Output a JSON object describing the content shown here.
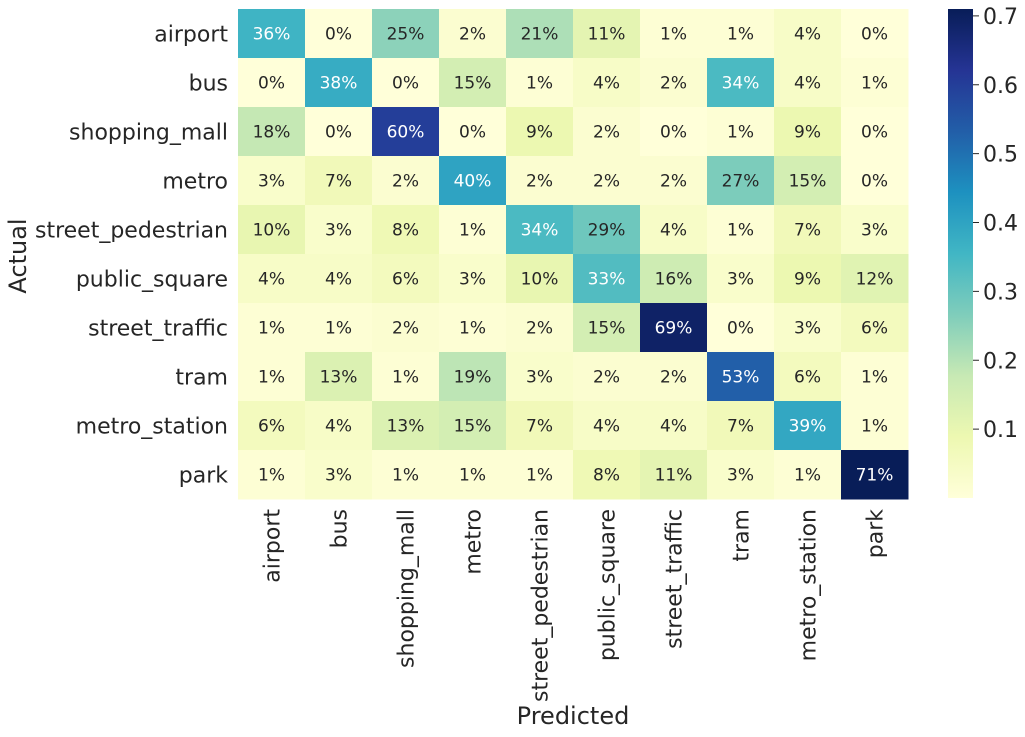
{
  "chart_data": {
    "type": "heatmap",
    "xlabel": "Predicted",
    "ylabel": "Actual",
    "row_labels": [
      "airport",
      "bus",
      "shopping_mall",
      "metro",
      "street_pedestrian",
      "public_square",
      "street_traffic",
      "tram",
      "metro_station",
      "park"
    ],
    "col_labels": [
      "airport",
      "bus",
      "shopping_mall",
      "metro",
      "street_pedestrian",
      "public_square",
      "street_traffic",
      "tram",
      "metro_station",
      "park"
    ],
    "values": [
      [
        0.36,
        0.0,
        0.25,
        0.02,
        0.21,
        0.11,
        0.01,
        0.01,
        0.04,
        0.0
      ],
      [
        0.0,
        0.38,
        0.0,
        0.15,
        0.01,
        0.04,
        0.02,
        0.34,
        0.04,
        0.01
      ],
      [
        0.18,
        0.0,
        0.6,
        0.0,
        0.09,
        0.02,
        0.0,
        0.01,
        0.09,
        0.0
      ],
      [
        0.03,
        0.07,
        0.02,
        0.4,
        0.02,
        0.02,
        0.02,
        0.27,
        0.15,
        0.0
      ],
      [
        0.1,
        0.03,
        0.08,
        0.01,
        0.34,
        0.29,
        0.04,
        0.01,
        0.07,
        0.03
      ],
      [
        0.04,
        0.04,
        0.06,
        0.03,
        0.1,
        0.33,
        0.16,
        0.03,
        0.09,
        0.12
      ],
      [
        0.01,
        0.01,
        0.02,
        0.01,
        0.02,
        0.15,
        0.69,
        0.0,
        0.03,
        0.06
      ],
      [
        0.01,
        0.13,
        0.01,
        0.19,
        0.03,
        0.02,
        0.02,
        0.53,
        0.06,
        0.01
      ],
      [
        0.06,
        0.04,
        0.13,
        0.15,
        0.07,
        0.04,
        0.04,
        0.07,
        0.39,
        0.01
      ],
      [
        0.01,
        0.03,
        0.01,
        0.01,
        0.01,
        0.08,
        0.11,
        0.03,
        0.01,
        0.71
      ]
    ],
    "annotations": [
      [
        "36%",
        "0%",
        "25%",
        "2%",
        "21%",
        "11%",
        "1%",
        "1%",
        "4%",
        "0%"
      ],
      [
        "0%",
        "38%",
        "0%",
        "15%",
        "1%",
        "4%",
        "2%",
        "34%",
        "4%",
        "1%"
      ],
      [
        "18%",
        "0%",
        "60%",
        "0%",
        "9%",
        "2%",
        "0%",
        "1%",
        "9%",
        "0%"
      ],
      [
        "3%",
        "7%",
        "2%",
        "40%",
        "2%",
        "2%",
        "2%",
        "27%",
        "15%",
        "0%"
      ],
      [
        "10%",
        "3%",
        "8%",
        "1%",
        "34%",
        "29%",
        "4%",
        "1%",
        "7%",
        "3%"
      ],
      [
        "4%",
        "4%",
        "6%",
        "3%",
        "10%",
        "33%",
        "16%",
        "3%",
        "9%",
        "12%"
      ],
      [
        "1%",
        "1%",
        "2%",
        "1%",
        "2%",
        "15%",
        "69%",
        "0%",
        "3%",
        "6%"
      ],
      [
        "1%",
        "13%",
        "1%",
        "19%",
        "3%",
        "2%",
        "2%",
        "53%",
        "6%",
        "1%"
      ],
      [
        "6%",
        "4%",
        "13%",
        "15%",
        "7%",
        "4%",
        "4%",
        "7%",
        "39%",
        "1%"
      ],
      [
        "1%",
        "3%",
        "1%",
        "1%",
        "1%",
        "8%",
        "11%",
        "3%",
        "1%",
        "71%"
      ]
    ],
    "colorbar": {
      "range": [
        0.0,
        0.71
      ],
      "ticks": [
        0.1,
        0.2,
        0.3,
        0.4,
        0.5,
        0.6,
        0.7
      ],
      "tick_labels": [
        "0.1",
        "0.2",
        "0.3",
        "0.4",
        "0.5",
        "0.6",
        "0.7"
      ],
      "colormap": "YlGnBu"
    },
    "text_colors": {
      "dark": "#262626",
      "light": "#ffffff"
    }
  }
}
